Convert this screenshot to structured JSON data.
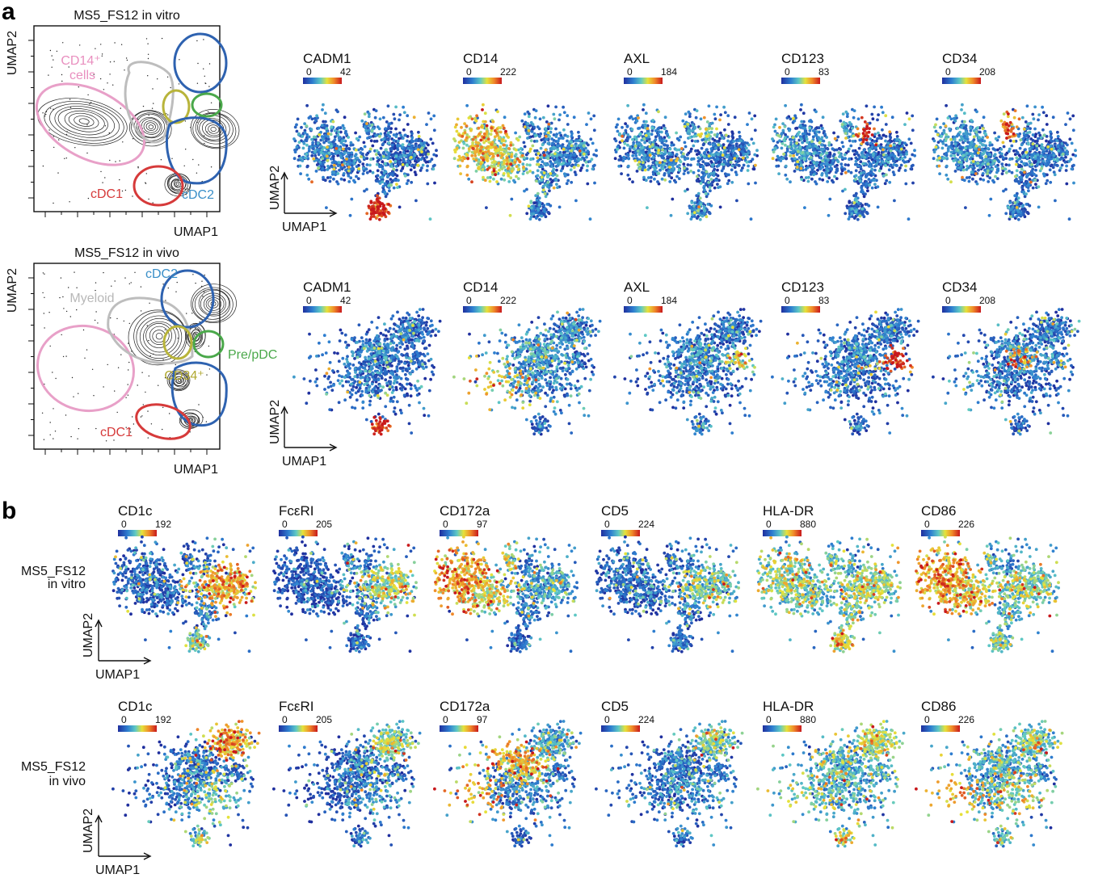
{
  "colors": {
    "cd14": "#e8a0c8",
    "myeloid": "#bdbdbd",
    "cdc2": "#2e62b0",
    "cd34": "#b8b43a",
    "prepdc": "#4aa84a",
    "cdc1": "#d63a3a",
    "cdc2_text": "#3a8fc8",
    "cd34_text": "#b0a830",
    "prepdc_text": "#4aa84a",
    "cdc1_text": "#d63a3a",
    "cd14_text": "#e98fbf",
    "myeloid_text": "#b8b8b8"
  },
  "chart_data": [
    {
      "type": "scatter",
      "panel": "a",
      "title": "MS5_FS12 in vitro",
      "xlabel": "UMAP1",
      "ylabel": "UMAP2",
      "gates": [
        {
          "name": "CD14+ cells",
          "label_line1": "CD14⁺",
          "label_line2": "cells"
        },
        {
          "name": "Myeloid",
          "label": ""
        },
        {
          "name": "cDC1",
          "label": "cDC1"
        },
        {
          "name": "cDC2",
          "label": "cDC2"
        },
        {
          "name": "CD34+",
          "label": ""
        },
        {
          "name": "Pre/pDC",
          "label": ""
        }
      ]
    },
    {
      "type": "scatter",
      "panel": "a",
      "title": "MS5_FS12 in vivo",
      "xlabel": "UMAP1",
      "ylabel": "UMAP2",
      "gates": [
        {
          "name": "cDC2",
          "label": "cDC2"
        },
        {
          "name": "Myeloid",
          "label": "Myeloid"
        },
        {
          "name": "Pre/pDC",
          "label": "Pre/pDC"
        },
        {
          "name": "CD34+",
          "label": "CD34⁺"
        },
        {
          "name": "cDC1",
          "label": "cDC1"
        },
        {
          "name": "CD14+ cells",
          "label": ""
        }
      ]
    },
    {
      "type": "scatter",
      "panel": "a",
      "condition": "in vitro",
      "markers": [
        {
          "name": "CADM1",
          "min": 0,
          "max": 42
        },
        {
          "name": "CD14",
          "min": 0,
          "max": 222
        },
        {
          "name": "AXL",
          "min": 0,
          "max": 184
        },
        {
          "name": "CD123",
          "min": 0,
          "max": 83
        },
        {
          "name": "CD34",
          "min": 0,
          "max": 208
        }
      ],
      "xlabel": "UMAP1",
      "ylabel": "UMAP2"
    },
    {
      "type": "scatter",
      "panel": "a",
      "condition": "in vivo",
      "markers": [
        {
          "name": "CADM1",
          "min": 0,
          "max": 42
        },
        {
          "name": "CD14",
          "min": 0,
          "max": 222
        },
        {
          "name": "AXL",
          "min": 0,
          "max": 184
        },
        {
          "name": "CD123",
          "min": 0,
          "max": 83
        },
        {
          "name": "CD34",
          "min": 0,
          "max": 208
        }
      ],
      "xlabel": "UMAP1",
      "ylabel": "UMAP2"
    },
    {
      "type": "scatter",
      "panel": "b",
      "condition": "in vitro",
      "row_label_line1": "MS5_FS12",
      "row_label_line2": "in vitro",
      "markers": [
        {
          "name": "CD1c",
          "min": 0,
          "max": 192
        },
        {
          "name": "FcεRI",
          "min": 0,
          "max": 205
        },
        {
          "name": "CD172a",
          "min": 0,
          "max": 97
        },
        {
          "name": "CD5",
          "min": 0,
          "max": 224
        },
        {
          "name": "HLA-DR",
          "min": 0,
          "max": 880
        },
        {
          "name": "CD86",
          "min": 0,
          "max": 226
        }
      ],
      "xlabel": "UMAP1",
      "ylabel": "UMAP2"
    },
    {
      "type": "scatter",
      "panel": "b",
      "condition": "in vivo",
      "row_label_line1": "MS5_FS12",
      "row_label_line2": "in vivo",
      "markers": [
        {
          "name": "CD1c",
          "min": 0,
          "max": 192
        },
        {
          "name": "FcεRI",
          "min": 0,
          "max": 205
        },
        {
          "name": "CD172a",
          "min": 0,
          "max": 97
        },
        {
          "name": "CD5",
          "min": 0,
          "max": 224
        },
        {
          "name": "HLA-DR",
          "min": 0,
          "max": 880
        },
        {
          "name": "CD86",
          "min": 0,
          "max": 226
        }
      ],
      "xlabel": "UMAP1",
      "ylabel": "UMAP2"
    }
  ],
  "panels": {
    "a": "a",
    "b": "b"
  }
}
